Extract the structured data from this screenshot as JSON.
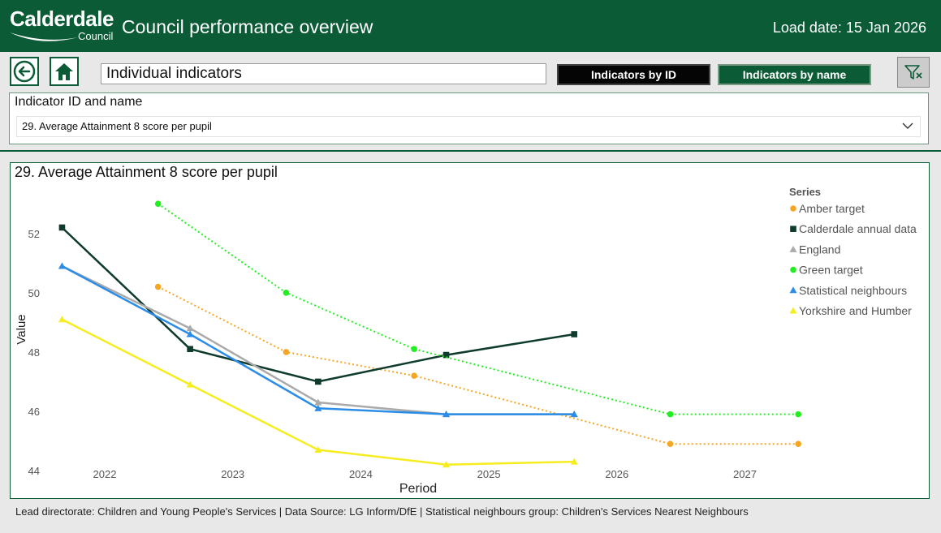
{
  "header": {
    "logo_line1": "Calderdale",
    "logo_line2": "Council",
    "title": "Council performance overview",
    "load_date": "Load date: 15 Jan 2026"
  },
  "toolbar": {
    "back_icon": "back-arrow-icon",
    "home_icon": "home-icon",
    "page_name": "Individual indicators",
    "btn_by_id": "Indicators by ID",
    "btn_by_name": "Indicators by name",
    "filter_icon": "clear-filter-icon"
  },
  "slicer": {
    "label": "Indicator ID and name",
    "selected": "29. Average Attainment 8 score per pupil"
  },
  "colors": {
    "brand": "#0b5b36",
    "amber": "#f5a623",
    "calderdale": "#0e3b2e",
    "england": "#aaaaaa",
    "green": "#22ee22",
    "statistical": "#2b8de8",
    "yorkshire": "#f5ed20"
  },
  "chart_data": {
    "type": "line",
    "title": "29. Average Attainment 8 score per pupil",
    "xlabel": "Period",
    "ylabel": "Value",
    "x_ticks": [
      "2022",
      "2023",
      "2024",
      "2025",
      "2026",
      "2027"
    ],
    "y_ticks": [
      "44",
      "46",
      "48",
      "50",
      "52"
    ],
    "ylim": [
      43.7,
      53.8
    ],
    "legend_title": "Series",
    "legend_position": "right",
    "series": [
      {
        "name": "Amber target",
        "color": "#f5a623",
        "marker": "circle",
        "dashed": true,
        "x": [
          "2022-06",
          "2023-06",
          "2024-06",
          "2026-06",
          "2027-06"
        ],
        "values": [
          50.2,
          48.0,
          47.2,
          44.9,
          44.9
        ]
      },
      {
        "name": "Calderdale annual data",
        "color": "#0e3b2e",
        "marker": "square",
        "dashed": false,
        "x": [
          "2021-09",
          "2022-09",
          "2023-09",
          "2024-09",
          "2025-09"
        ],
        "values": [
          52.2,
          48.1,
          47.0,
          47.9,
          48.6
        ]
      },
      {
        "name": "England",
        "color": "#aaaaaa",
        "marker": "triangle",
        "dashed": false,
        "x": [
          "2021-09",
          "2022-09",
          "2023-09",
          "2024-09",
          "2025-09"
        ],
        "values": [
          50.9,
          48.8,
          46.3,
          45.9,
          45.9
        ]
      },
      {
        "name": "Green target",
        "color": "#22ee22",
        "marker": "circle",
        "dashed": true,
        "x": [
          "2022-06",
          "2023-06",
          "2024-06",
          "2026-06",
          "2027-06"
        ],
        "values": [
          53.0,
          50.0,
          48.1,
          45.9,
          45.9
        ]
      },
      {
        "name": "Statistical neighbours",
        "color": "#2b8de8",
        "marker": "triangle",
        "dashed": false,
        "x": [
          "2021-09",
          "2022-09",
          "2023-09",
          "2024-09",
          "2025-09"
        ],
        "values": [
          50.9,
          48.6,
          46.1,
          45.9,
          45.9
        ]
      },
      {
        "name": "Yorkshire and Humber",
        "color": "#f5ed20",
        "marker": "triangle",
        "dashed": false,
        "x": [
          "2021-09",
          "2022-09",
          "2023-09",
          "2024-09",
          "2025-09"
        ],
        "values": [
          49.1,
          46.9,
          44.7,
          44.2,
          44.3
        ]
      }
    ]
  },
  "footer": {
    "text": "Lead directorate: Children and Young People's Services | Data Source: LG Inform/DfE | Statistical neighbours group: Children's Services Nearest Neighbours"
  }
}
